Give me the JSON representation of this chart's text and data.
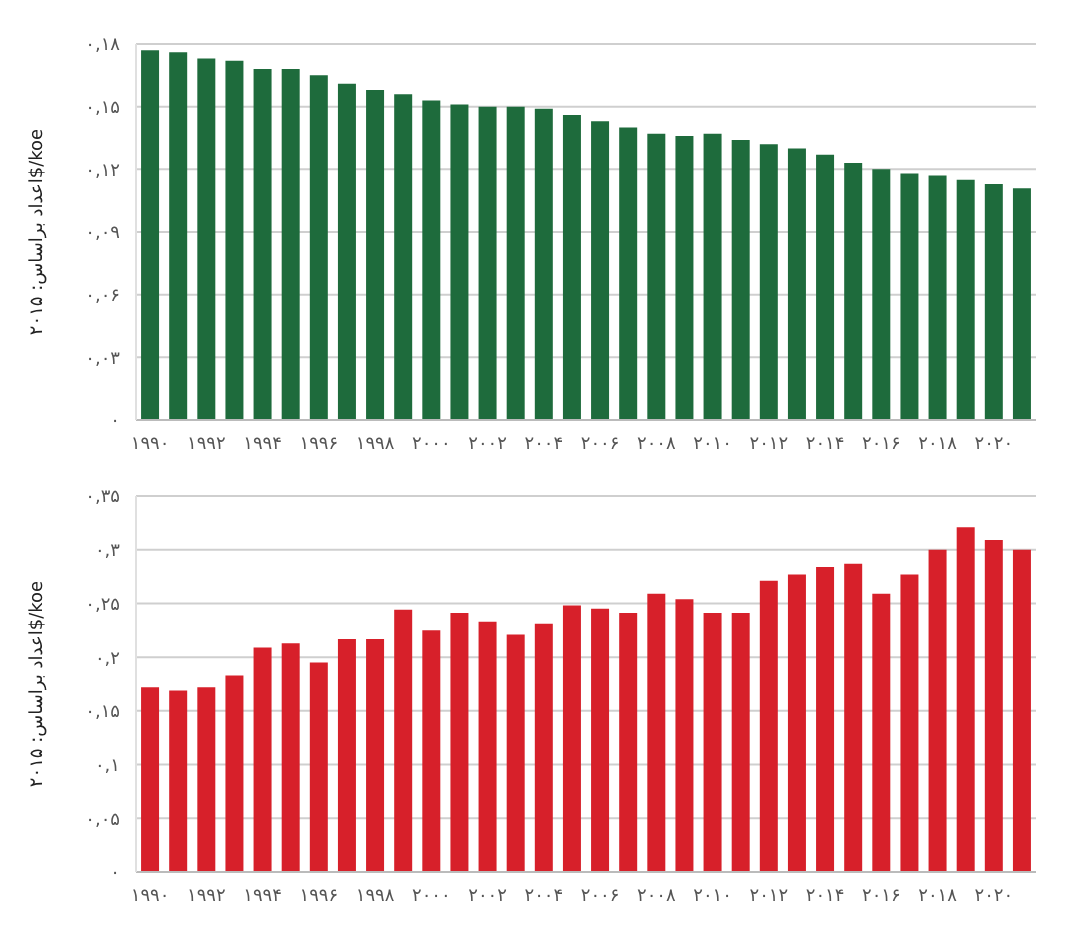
{
  "chart_data": [
    {
      "type": "bar",
      "ylabel": "اعداد براساس: ۲۰۱۵$/koe",
      "categories": [
        "۱۹۹۰",
        null,
        "۱۹۹۲",
        null,
        "۱۹۹۴",
        null,
        "۱۹۹۶",
        null,
        "۱۹۹۸",
        null,
        "۲۰۰۰",
        null,
        "۲۰۰۲",
        null,
        "۲۰۰۴",
        null,
        "۲۰۰۶",
        null,
        "۲۰۰۸",
        null,
        "۲۰۱۰",
        null,
        "۲۰۱۲",
        null,
        "۲۰۱۴",
        null,
        "۲۰۱۶",
        null,
        "۲۰۱۸",
        null,
        "۲۰۲۰",
        null
      ],
      "values": [
        0.177,
        0.176,
        0.173,
        0.172,
        0.168,
        0.168,
        0.165,
        0.161,
        0.158,
        0.156,
        0.153,
        0.151,
        0.15,
        0.15,
        0.149,
        0.146,
        0.143,
        0.14,
        0.137,
        0.136,
        0.137,
        0.134,
        0.132,
        0.13,
        0.127,
        0.123,
        0.12,
        0.118,
        0.117,
        0.115,
        0.113,
        0.111
      ],
      "color": "#1e6b3c",
      "ylim": [
        0,
        0.18
      ],
      "yticks": [
        {
          "value": 0,
          "label": "۰"
        },
        {
          "value": 0.03,
          "label": "۰,۰۳"
        },
        {
          "value": 0.06,
          "label": "۰,۰۶"
        },
        {
          "value": 0.09,
          "label": "۰,۰۹"
        },
        {
          "value": 0.12,
          "label": "۰,۱۲"
        },
        {
          "value": 0.15,
          "label": "۰,۱۵"
        },
        {
          "value": 0.18,
          "label": "۰,۱۸"
        }
      ],
      "grid": "y",
      "legend": false
    },
    {
      "type": "bar",
      "ylabel": "اعداد براساس: ۲۰۱۵$/koe",
      "categories": [
        "۱۹۹۰",
        null,
        "۱۹۹۲",
        null,
        "۱۹۹۴",
        null,
        "۱۹۹۶",
        null,
        "۱۹۹۸",
        null,
        "۲۰۰۰",
        null,
        "۲۰۰۲",
        null,
        "۲۰۰۴",
        null,
        "۲۰۰۶",
        null,
        "۲۰۰۸",
        null,
        "۲۰۱۰",
        null,
        "۲۰۱۲",
        null,
        "۲۰۱۴",
        null,
        "۲۰۱۶",
        null,
        "۲۰۱۸",
        null,
        "۲۰۲۰",
        null
      ],
      "values": [
        0.172,
        0.169,
        0.172,
        0.183,
        0.209,
        0.213,
        0.195,
        0.217,
        0.217,
        0.244,
        0.225,
        0.241,
        0.233,
        0.221,
        0.231,
        0.248,
        0.245,
        0.241,
        0.259,
        0.254,
        0.241,
        0.241,
        0.271,
        0.277,
        0.284,
        0.287,
        0.259,
        0.277,
        0.3,
        0.321,
        0.309,
        0.3
      ],
      "color": "#d7202a",
      "ylim": [
        0,
        0.35
      ],
      "yticks": [
        {
          "value": 0,
          "label": "۰"
        },
        {
          "value": 0.05,
          "label": "۰,۰۵"
        },
        {
          "value": 0.1,
          "label": "۰,۱"
        },
        {
          "value": 0.15,
          "label": "۰,۱۵"
        },
        {
          "value": 0.2,
          "label": "۰,۲"
        },
        {
          "value": 0.25,
          "label": "۰,۲۵"
        },
        {
          "value": 0.3,
          "label": "۰,۳"
        },
        {
          "value": 0.35,
          "label": "۰,۳۵"
        }
      ],
      "grid": "y",
      "legend": false
    }
  ]
}
